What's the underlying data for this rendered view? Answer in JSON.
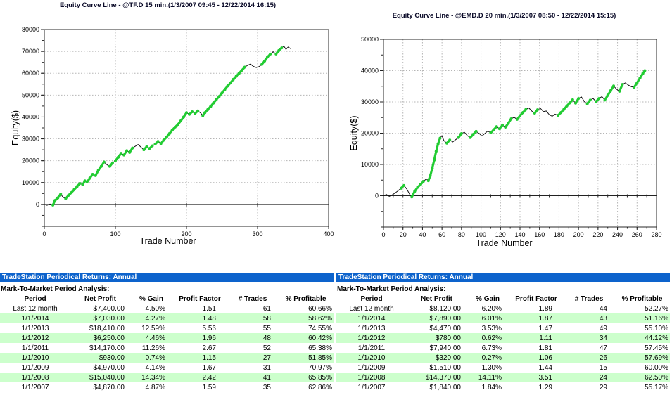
{
  "colors": {
    "header_bar_blue": "#0d63cc",
    "row_highlight_green": "#ccffcc",
    "curve_black": "#111111",
    "win_green": "#22cc33",
    "grid_gray": "#b5b5b5",
    "title_navy": "#0a0a28"
  },
  "chart_data": [
    {
      "type": "line",
      "title": "Equity Curve Line - @TF.D 15 min.(1/3/2007 09:45 - 12/22/2014 16:15)",
      "xlabel": "Trade Number",
      "ylabel": "Equity($)",
      "xlim": [
        0,
        400
      ],
      "ylim": [
        -10000,
        80000
      ],
      "x_ticks": [
        0,
        100,
        200,
        300,
        400
      ],
      "x_minor_step": 50,
      "y_ticks": [
        0,
        10000,
        20000,
        30000,
        40000,
        50000,
        60000,
        70000,
        80000
      ],
      "y_minor_step": 5000,
      "grid": true,
      "win_threshold": 1200,
      "points": [
        [
          0,
          0
        ],
        [
          4,
          -400
        ],
        [
          8,
          200
        ],
        [
          12,
          -300
        ],
        [
          15,
          1800
        ],
        [
          19,
          3000
        ],
        [
          23,
          4800
        ],
        [
          26,
          3400
        ],
        [
          30,
          2600
        ],
        [
          34,
          4200
        ],
        [
          38,
          5400
        ],
        [
          42,
          6800
        ],
        [
          46,
          8200
        ],
        [
          50,
          9600
        ],
        [
          54,
          9000
        ],
        [
          57,
          10800
        ],
        [
          60,
          10200
        ],
        [
          64,
          12000
        ],
        [
          68,
          13800
        ],
        [
          72,
          13200
        ],
        [
          76,
          15600
        ],
        [
          80,
          17400
        ],
        [
          84,
          19400
        ],
        [
          88,
          18200
        ],
        [
          92,
          17400
        ],
        [
          96,
          19000
        ],
        [
          100,
          20000
        ],
        [
          104,
          21600
        ],
        [
          108,
          23400
        ],
        [
          112,
          22600
        ],
        [
          116,
          24600
        ],
        [
          120,
          23800
        ],
        [
          124,
          25800
        ],
        [
          128,
          26600
        ],
        [
          132,
          27400
        ],
        [
          136,
          26200
        ],
        [
          140,
          25000
        ],
        [
          144,
          26400
        ],
        [
          148,
          25600
        ],
        [
          152,
          26800
        ],
        [
          156,
          27600
        ],
        [
          160,
          28800
        ],
        [
          164,
          27800
        ],
        [
          168,
          29400
        ],
        [
          172,
          30800
        ],
        [
          176,
          32400
        ],
        [
          180,
          34000
        ],
        [
          184,
          35400
        ],
        [
          188,
          36600
        ],
        [
          192,
          38200
        ],
        [
          196,
          40000
        ],
        [
          200,
          42000
        ],
        [
          204,
          41200
        ],
        [
          208,
          42400
        ],
        [
          212,
          41600
        ],
        [
          216,
          42800
        ],
        [
          220,
          41800
        ],
        [
          223,
          40600
        ],
        [
          226,
          42000
        ],
        [
          230,
          43400
        ],
        [
          234,
          44800
        ],
        [
          238,
          46400
        ],
        [
          242,
          48000
        ],
        [
          246,
          49400
        ],
        [
          250,
          51000
        ],
        [
          254,
          52600
        ],
        [
          258,
          54200
        ],
        [
          262,
          55600
        ],
        [
          266,
          57200
        ],
        [
          270,
          58600
        ],
        [
          274,
          60000
        ],
        [
          278,
          61400
        ],
        [
          282,
          62800
        ],
        [
          286,
          63600
        ],
        [
          290,
          64200
        ],
        [
          294,
          63200
        ],
        [
          298,
          62600
        ],
        [
          302,
          63000
        ],
        [
          306,
          64000
        ],
        [
          310,
          65600
        ],
        [
          314,
          67400
        ],
        [
          318,
          68800
        ],
        [
          322,
          69800
        ],
        [
          326,
          68800
        ],
        [
          330,
          70400
        ],
        [
          334,
          71600
        ],
        [
          337,
          72400
        ],
        [
          340,
          70900
        ],
        [
          343,
          72000
        ],
        [
          347,
          71200
        ]
      ]
    },
    {
      "type": "line",
      "title": "Equity Curve Line - @EMD.D 20 min.(1/3/2007 08:50 - 12/22/2014 15:15)",
      "xlabel": "Trade Number",
      "ylabel": "Equity($)",
      "xlim": [
        0,
        280
      ],
      "ylim": [
        -10000,
        50000
      ],
      "x_ticks": [
        0,
        20,
        40,
        60,
        80,
        100,
        120,
        140,
        160,
        180,
        200,
        220,
        240,
        260,
        280
      ],
      "x_minor_step": 10,
      "y_ticks": [
        0,
        10000,
        20000,
        30000,
        40000,
        50000
      ],
      "y_minor_step": 5000,
      "grid": true,
      "win_threshold": 900,
      "points": [
        [
          0,
          0
        ],
        [
          3,
          400
        ],
        [
          6,
          -200
        ],
        [
          9,
          300
        ],
        [
          12,
          900
        ],
        [
          15,
          1600
        ],
        [
          18,
          2400
        ],
        [
          21,
          3300
        ],
        [
          24,
          2100
        ],
        [
          27,
          400
        ],
        [
          29,
          -400
        ],
        [
          32,
          1400
        ],
        [
          35,
          2700
        ],
        [
          38,
          3600
        ],
        [
          41,
          4600
        ],
        [
          44,
          5400
        ],
        [
          46,
          4800
        ],
        [
          48,
          6400
        ],
        [
          50,
          8800
        ],
        [
          52,
          11400
        ],
        [
          54,
          14200
        ],
        [
          56,
          16600
        ],
        [
          58,
          18400
        ],
        [
          60,
          19200
        ],
        [
          62,
          17600
        ],
        [
          65,
          16800
        ],
        [
          68,
          17800
        ],
        [
          71,
          17200
        ],
        [
          74,
          17900
        ],
        [
          77,
          18600
        ],
        [
          80,
          19900
        ],
        [
          83,
          20300
        ],
        [
          86,
          19200
        ],
        [
          89,
          18600
        ],
        [
          92,
          19600
        ],
        [
          95,
          20600
        ],
        [
          98,
          19900
        ],
        [
          101,
          19100
        ],
        [
          104,
          19900
        ],
        [
          107,
          20700
        ],
        [
          110,
          20100
        ],
        [
          113,
          21100
        ],
        [
          116,
          22100
        ],
        [
          119,
          21400
        ],
        [
          122,
          22600
        ],
        [
          125,
          21900
        ],
        [
          128,
          23200
        ],
        [
          131,
          24600
        ],
        [
          134,
          25100
        ],
        [
          137,
          24400
        ],
        [
          140,
          25600
        ],
        [
          143,
          26600
        ],
        [
          146,
          27600
        ],
        [
          149,
          28100
        ],
        [
          152,
          27100
        ],
        [
          155,
          26400
        ],
        [
          158,
          27500
        ],
        [
          161,
          27900
        ],
        [
          164,
          26900
        ],
        [
          167,
          27100
        ],
        [
          170,
          25900
        ],
        [
          173,
          25400
        ],
        [
          176,
          26100
        ],
        [
          179,
          25700
        ],
        [
          182,
          26600
        ],
        [
          185,
          27600
        ],
        [
          188,
          28700
        ],
        [
          191,
          29700
        ],
        [
          194,
          30700
        ],
        [
          197,
          29600
        ],
        [
          200,
          31100
        ],
        [
          203,
          31600
        ],
        [
          206,
          30100
        ],
        [
          209,
          29400
        ],
        [
          212,
          30600
        ],
        [
          215,
          31100
        ],
        [
          218,
          30100
        ],
        [
          221,
          31100
        ],
        [
          224,
          31700
        ],
        [
          227,
          30600
        ],
        [
          230,
          32100
        ],
        [
          233,
          33600
        ],
        [
          236,
          35100
        ],
        [
          239,
          34100
        ],
        [
          242,
          33400
        ],
        [
          245,
          35600
        ],
        [
          248,
          36100
        ],
        [
          251,
          35400
        ],
        [
          254,
          34900
        ],
        [
          257,
          34700
        ],
        [
          260,
          36100
        ],
        [
          263,
          37600
        ],
        [
          266,
          39100
        ],
        [
          268,
          40000
        ]
      ]
    }
  ],
  "tables": [
    {
      "header_bar": "TradeStation Periodical Returns: Annual",
      "section_title": "Mark-To-Market Period Analysis:",
      "columns": [
        "Period",
        "Net Profit",
        "% Gain",
        "Profit Factor",
        "# Trades",
        "% Profitable"
      ],
      "rows": [
        [
          "Last 12 month",
          "$7,400.00",
          "4.50%",
          "1.51",
          "61",
          "60.66%"
        ],
        [
          "1/1/2014",
          "$7,030.00",
          "4.27%",
          "1.48",
          "58",
          "58.62%"
        ],
        [
          "1/1/2013",
          "$18,410.00",
          "12.59%",
          "5.56",
          "55",
          "74.55%"
        ],
        [
          "1/1/2012",
          "$6,250.00",
          "4.46%",
          "1.96",
          "48",
          "60.42%"
        ],
        [
          "1/1/2011",
          "$14,170.00",
          "11.26%",
          "2.67",
          "52",
          "65.38%"
        ],
        [
          "1/1/2010",
          "$930.00",
          "0.74%",
          "1.15",
          "27",
          "51.85%"
        ],
        [
          "1/1/2009",
          "$4,970.00",
          "4.14%",
          "1.67",
          "31",
          "70.97%"
        ],
        [
          "1/1/2008",
          "$15,040.00",
          "14.34%",
          "2.42",
          "41",
          "65.85%"
        ],
        [
          "1/1/2007",
          "$4,870.00",
          "4.87%",
          "1.59",
          "35",
          "62.86%"
        ]
      ]
    },
    {
      "header_bar": "TradeStation Periodical Returns: Annual",
      "section_title": "Mark-To-Market Period Analysis:",
      "columns": [
        "Period",
        "Net Profit",
        "% Gain",
        "Profit Factor",
        "# Trades",
        "% Profitable"
      ],
      "rows": [
        [
          "Last 12 month",
          "$8,120.00",
          "6.20%",
          "1.89",
          "44",
          "52.27%"
        ],
        [
          "1/1/2014",
          "$7,890.00",
          "6.01%",
          "1.87",
          "43",
          "51.16%"
        ],
        [
          "1/1/2013",
          "$4,470.00",
          "3.53%",
          "1.47",
          "49",
          "55.10%"
        ],
        [
          "1/1/2012",
          "$780.00",
          "0.62%",
          "1.11",
          "34",
          "44.12%"
        ],
        [
          "1/1/2011",
          "$7,940.00",
          "6.73%",
          "1.81",
          "47",
          "57.45%"
        ],
        [
          "1/1/2010",
          "$320.00",
          "0.27%",
          "1.06",
          "26",
          "57.69%"
        ],
        [
          "1/1/2009",
          "$1,510.00",
          "1.30%",
          "1.44",
          "15",
          "60.00%"
        ],
        [
          "1/1/2008",
          "$14,370.00",
          "14.11%",
          "3.51",
          "24",
          "62.50%"
        ],
        [
          "1/1/2007",
          "$1,840.00",
          "1.84%",
          "1.29",
          "29",
          "55.17%"
        ]
      ]
    }
  ]
}
